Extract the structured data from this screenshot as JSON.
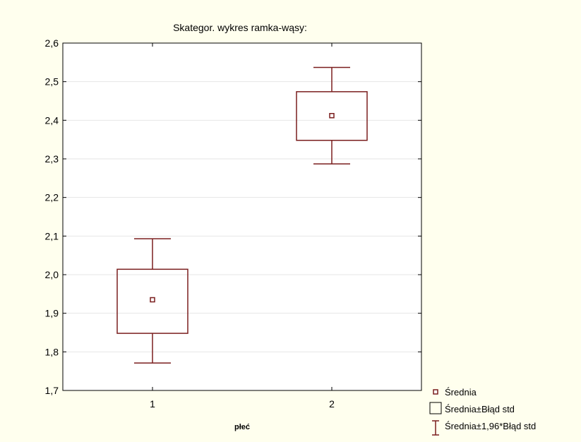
{
  "chart_data": {
    "type": "boxplot",
    "title": "Skategor. wykres ramka-wąsy:",
    "xlabel": "płeć",
    "ylabel": "",
    "ylim": [
      1.7,
      2.6
    ],
    "yticks": [
      1.7,
      1.8,
      1.9,
      2.0,
      2.1,
      2.2,
      2.3,
      2.4,
      2.5,
      2.6
    ],
    "ytick_labels": [
      "1,7",
      "1,8",
      "1,9",
      "2,0",
      "2,1",
      "2,2",
      "2,3",
      "2,4",
      "2,5",
      "2,6"
    ],
    "categories": [
      "1",
      "2"
    ],
    "grid": true,
    "legend_position": "bottom-right",
    "groups": [
      {
        "category": "1",
        "mean": 1.935,
        "box_low": 1.848,
        "box_high": 2.014,
        "whisker_low": 1.771,
        "whisker_high": 2.093
      },
      {
        "category": "2",
        "mean": 2.412,
        "box_low": 2.348,
        "box_high": 2.474,
        "whisker_low": 2.287,
        "whisker_high": 2.537
      }
    ],
    "legend": [
      {
        "label": "Średnia",
        "symbol": "square-marker"
      },
      {
        "label": "Średnia±Błąd std",
        "symbol": "box"
      },
      {
        "label": "Średnia±1,96*Błąd std",
        "symbol": "whisker"
      }
    ],
    "colors": {
      "series": "#7A1E1E",
      "background": "#FFFFEE",
      "grid": "#E6E6E6",
      "axis": "#000000"
    }
  }
}
